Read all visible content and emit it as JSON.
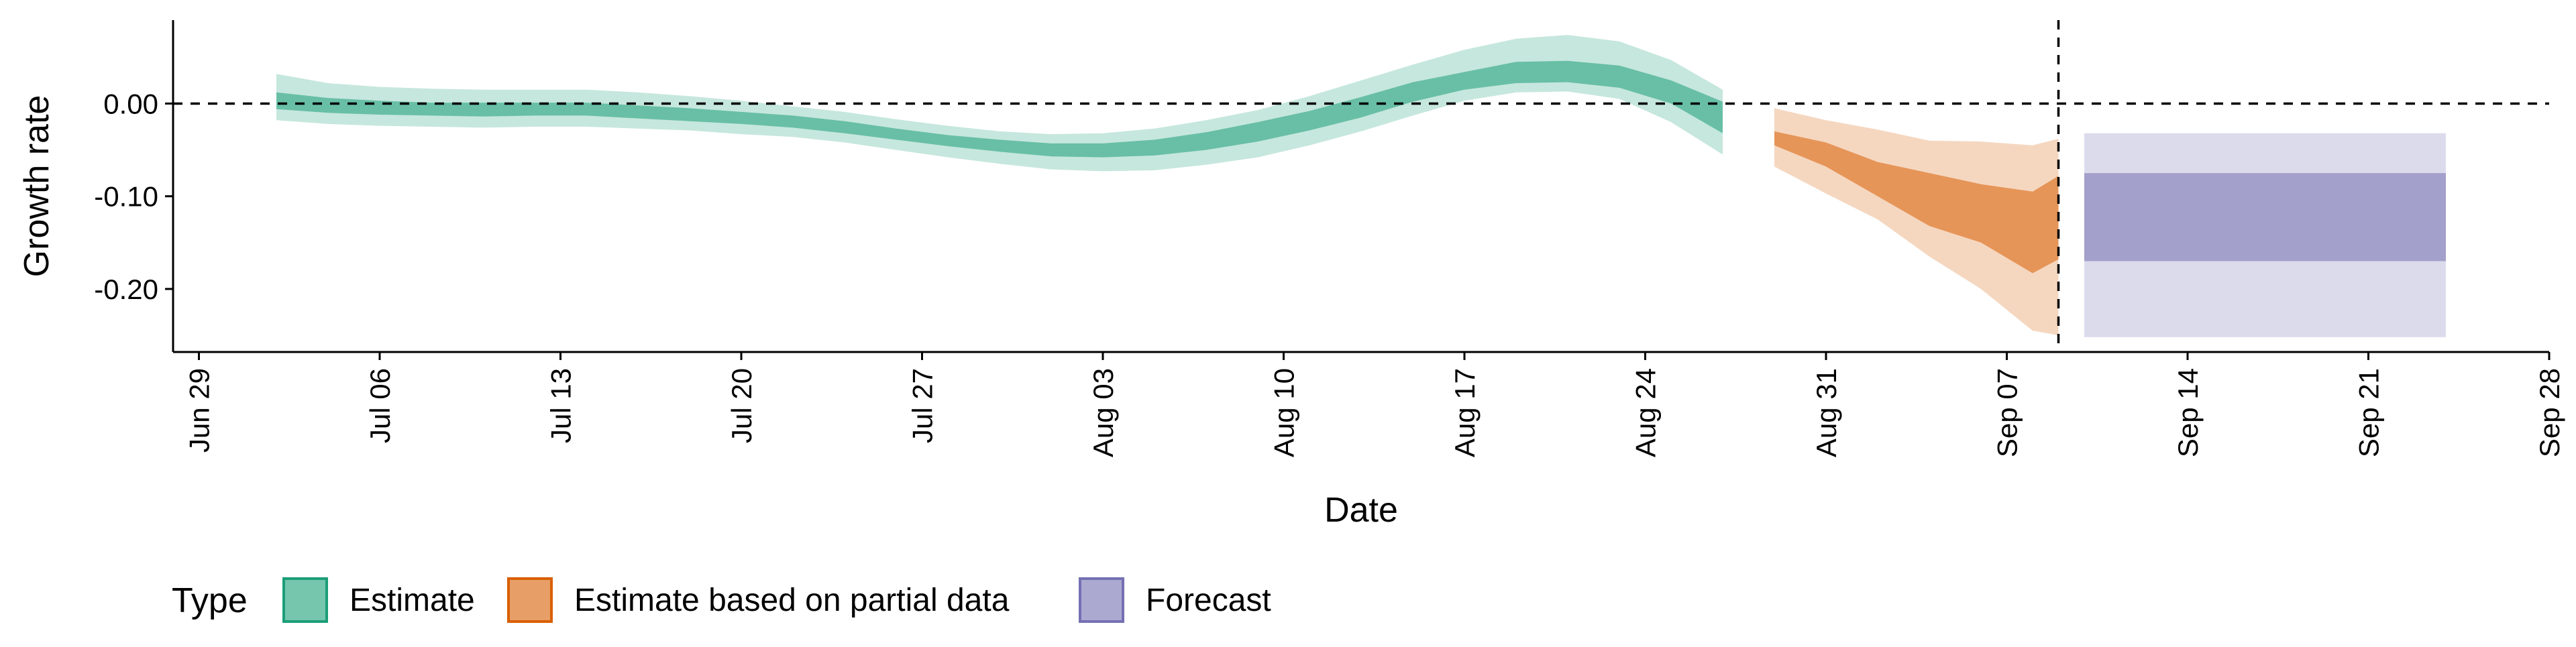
{
  "chart_data": {
    "type": "area",
    "xlabel": "Date",
    "ylabel": "Growth rate",
    "x_ticks": [
      "Jun 29",
      "Jul 06",
      "Jul 13",
      "Jul 20",
      "Jul 27",
      "Aug 03",
      "Aug 10",
      "Aug 17",
      "Aug 24",
      "Aug 31",
      "Sep 07",
      "Sep 14",
      "Sep 21",
      "Sep 28"
    ],
    "y_ticks": [
      0.0,
      -0.1,
      -0.2
    ],
    "y_tick_labels": [
      "0.00",
      "-0.10",
      "-0.20"
    ],
    "x_range": [
      "2020-06-28",
      "2020-09-28"
    ],
    "ylim": [
      -0.268,
      0.09
    ],
    "horizontal_reference_line": 0.0,
    "vertical_reference_date": "2020-09-09",
    "grid": false,
    "legend": {
      "title": "Type",
      "placement": "bottom-left",
      "entries": [
        "Estimate",
        "Estimate based on partial data",
        "Forecast"
      ]
    },
    "colors": {
      "Estimate": "#1b9e77",
      "Estimate based on partial data": "#d95f02",
      "Forecast": "#7570b3"
    },
    "series": [
      {
        "name": "Estimate",
        "x": [
          "2020-07-02",
          "2020-07-04",
          "2020-07-06",
          "2020-07-08",
          "2020-07-10",
          "2020-07-12",
          "2020-07-14",
          "2020-07-16",
          "2020-07-18",
          "2020-07-20",
          "2020-07-22",
          "2020-07-24",
          "2020-07-26",
          "2020-07-28",
          "2020-07-30",
          "2020-08-01",
          "2020-08-03",
          "2020-08-05",
          "2020-08-07",
          "2020-08-09",
          "2020-08-11",
          "2020-08-13",
          "2020-08-15",
          "2020-08-17",
          "2020-08-19",
          "2020-08-21",
          "2020-08-23",
          "2020-08-25",
          "2020-08-27"
        ],
        "lower_90": [
          -0.018,
          -0.022,
          -0.024,
          -0.025,
          -0.026,
          -0.025,
          -0.025,
          -0.027,
          -0.029,
          -0.033,
          -0.036,
          -0.042,
          -0.05,
          -0.058,
          -0.065,
          -0.071,
          -0.073,
          -0.072,
          -0.066,
          -0.058,
          -0.045,
          -0.03,
          -0.013,
          0.003,
          0.012,
          0.013,
          0.005,
          -0.02,
          -0.055
        ],
        "lower_50": [
          -0.006,
          -0.01,
          -0.012,
          -0.013,
          -0.014,
          -0.013,
          -0.013,
          -0.016,
          -0.019,
          -0.022,
          -0.026,
          -0.032,
          -0.039,
          -0.046,
          -0.052,
          -0.057,
          -0.058,
          -0.056,
          -0.05,
          -0.041,
          -0.029,
          -0.015,
          0.002,
          0.015,
          0.022,
          0.023,
          0.017,
          0.0,
          -0.032
        ],
        "upper_50": [
          0.012,
          0.006,
          0.003,
          0.001,
          0.001,
          0.001,
          0.001,
          -0.002,
          -0.005,
          -0.009,
          -0.013,
          -0.019,
          -0.027,
          -0.034,
          -0.039,
          -0.043,
          -0.043,
          -0.039,
          -0.031,
          -0.02,
          -0.008,
          0.007,
          0.023,
          0.034,
          0.045,
          0.046,
          0.041,
          0.025,
          0.002
        ],
        "upper_90": [
          0.032,
          0.022,
          0.018,
          0.016,
          0.015,
          0.015,
          0.015,
          0.012,
          0.008,
          0.003,
          -0.003,
          -0.009,
          -0.017,
          -0.024,
          -0.03,
          -0.033,
          -0.032,
          -0.027,
          -0.018,
          -0.007,
          0.008,
          0.025,
          0.042,
          0.058,
          0.07,
          0.074,
          0.067,
          0.047,
          0.015
        ]
      },
      {
        "name": "Estimate based on partial data",
        "x": [
          "2020-08-29",
          "2020-08-31",
          "2020-09-02",
          "2020-09-04",
          "2020-09-06",
          "2020-09-08",
          "2020-09-09"
        ],
        "lower_90": [
          -0.068,
          -0.097,
          -0.125,
          -0.165,
          -0.2,
          -0.245,
          -0.25
        ],
        "lower_50": [
          -0.045,
          -0.068,
          -0.1,
          -0.132,
          -0.15,
          -0.183,
          -0.168
        ],
        "upper_50": [
          -0.03,
          -0.042,
          -0.063,
          -0.075,
          -0.087,
          -0.095,
          -0.078
        ],
        "upper_90": [
          -0.005,
          -0.018,
          -0.028,
          -0.04,
          -0.041,
          -0.045,
          -0.038
        ]
      },
      {
        "name": "Forecast",
        "x": [
          "2020-09-10",
          "2020-09-24"
        ],
        "lower_90": -0.252,
        "lower_50": -0.17,
        "upper_50": -0.075,
        "upper_90": -0.032
      }
    ]
  }
}
